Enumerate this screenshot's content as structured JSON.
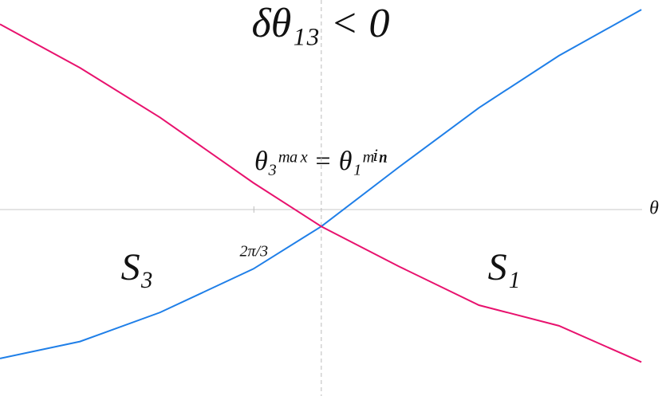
{
  "chart_data": {
    "type": "line",
    "title": "δθ₁₃ < 0",
    "annotation": "θ₃ᵐᵃˣ = θ₁ᵐⁱⁿ",
    "xlabel": "θ",
    "region_labels": [
      "S₃",
      "S₁"
    ],
    "x": [
      0,
      0.66,
      1.32,
      2.09,
      2.65,
      3.29,
      3.95,
      4.61,
      5.29
    ],
    "series": [
      {
        "color": "#1f7fe8",
        "values": [
          -1.23,
          -1.09,
          -0.85,
          -0.49,
          -0.14,
          0.35,
          0.84,
          1.27,
          1.65
        ]
      },
      {
        "color": "#e8126e",
        "values": [
          1.53,
          1.17,
          0.76,
          0.22,
          -0.14,
          -0.47,
          -0.79,
          -0.96,
          -1.26
        ]
      }
    ],
    "xlim": [
      0,
      5.46
    ],
    "ylim": [
      -1.54,
      1.73
    ],
    "xticks": [
      {
        "value": 2.094,
        "label": "2π/3"
      }
    ],
    "vline": 2.65
  }
}
